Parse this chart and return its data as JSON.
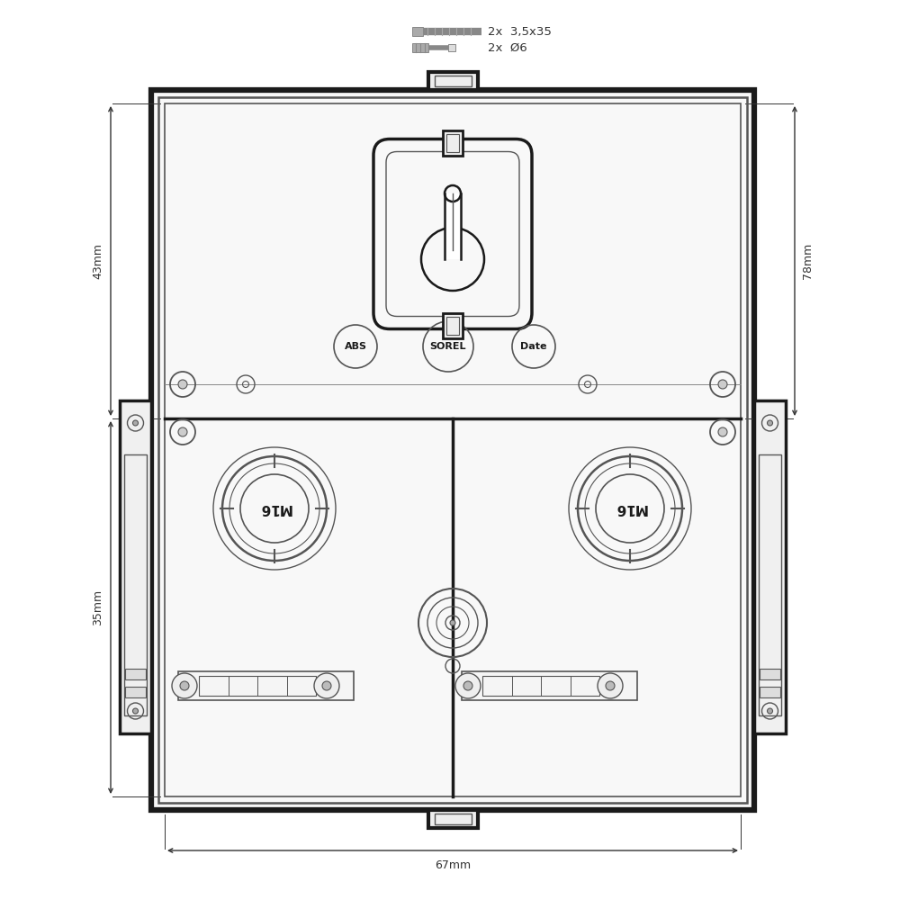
{
  "bg_color": "#ffffff",
  "lc_dark": "#1a1a1a",
  "lc_mid": "#555555",
  "lc_light": "#888888",
  "dim_color": "#333333",
  "screw1_text": "2x  3,5x35",
  "screw2_text": "2x  Ø6",
  "dim_43mm": "43mm",
  "dim_35mm": "35mm",
  "dim_78mm": "78mm",
  "dim_67mm": "67mm",
  "label_ABS": "ABS",
  "label_SOREL": "SOREL",
  "label_Date": "Date",
  "label_M16": "M16"
}
